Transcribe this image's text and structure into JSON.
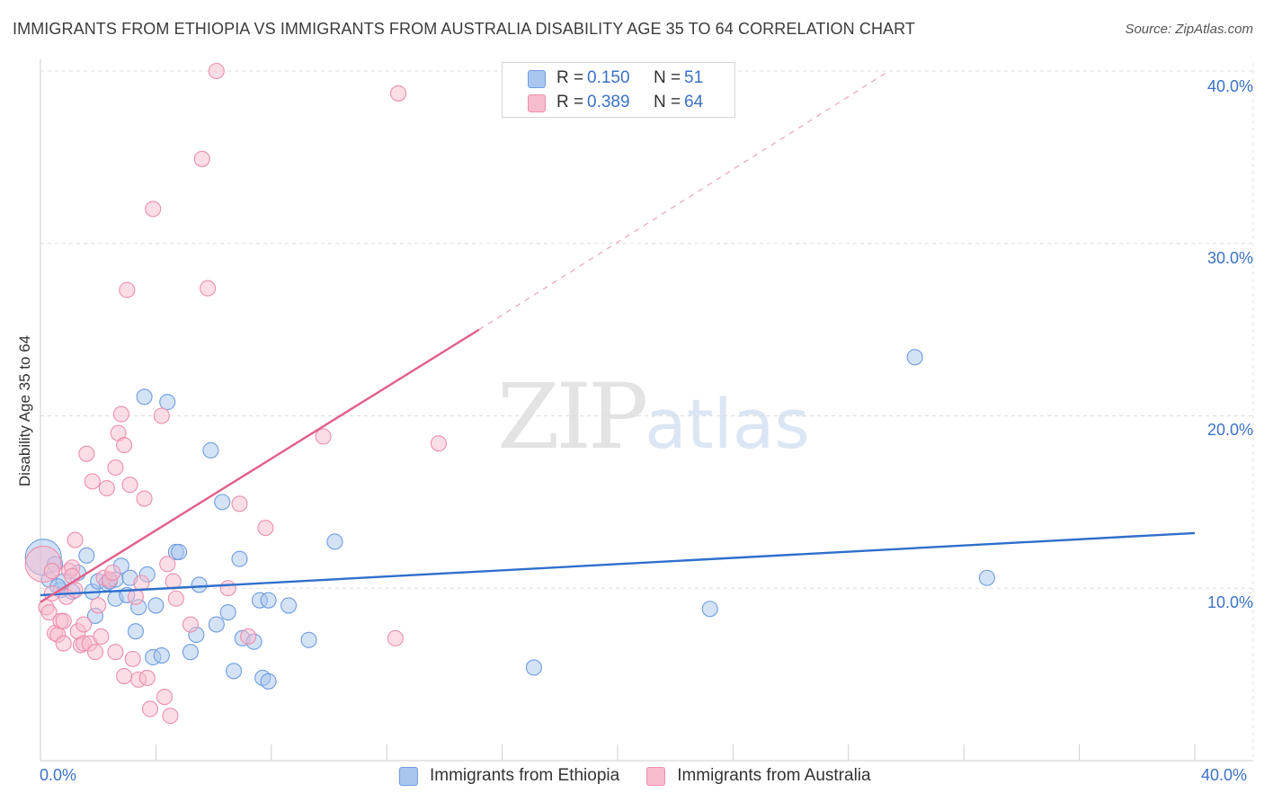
{
  "header": {
    "title": "IMMIGRANTS FROM ETHIOPIA VS IMMIGRANTS FROM AUSTRALIA DISABILITY AGE 35 TO 64 CORRELATION CHART",
    "source": "Source: ZipAtlas.com"
  },
  "watermark": {
    "zip": "ZIP",
    "atlas": "atlas"
  },
  "colors": {
    "blue_fill": "#a9c6ee",
    "blue_line": "#2f6fcc",
    "pink_fill": "#f7bccd",
    "pink_line": "#e0608a",
    "tick_text": "#3b72c4"
  },
  "legend": {
    "rows": [
      {
        "series": "ethiopia",
        "r_label": "R =",
        "r_value": "0.150",
        "n_label": "N =",
        "n_value": "51"
      },
      {
        "series": "australia",
        "r_label": "R =",
        "r_value": "0.389",
        "n_label": "N =",
        "n_value": "64"
      }
    ]
  },
  "chart_data": {
    "type": "scatter",
    "title": "IMMIGRANTS FROM ETHIOPIA VS IMMIGRANTS FROM AUSTRALIA DISABILITY AGE 35 TO 64 CORRELATION CHART",
    "xlabel": "",
    "ylabel": "Disability Age 35 to 64",
    "xlim": [
      0,
      40
    ],
    "ylim": [
      0,
      40
    ],
    "x_tick_labels": [
      "0.0%",
      "40.0%"
    ],
    "y_ticks": [
      10,
      20,
      30,
      40
    ],
    "y_tick_labels": [
      "10.0%",
      "20.0%",
      "30.0%",
      "40.0%"
    ],
    "grid": true,
    "series": [
      {
        "name": "Immigrants from Ethiopia",
        "trend": {
          "x": [
            0,
            40
          ],
          "y": [
            9.6,
            13.2
          ],
          "extrapolated_to": 40
        },
        "points": [
          {
            "x": 0.1,
            "y": 11.8,
            "big": true
          },
          {
            "x": 0.3,
            "y": 10.5
          },
          {
            "x": 0.5,
            "y": 11.4
          },
          {
            "x": 0.7,
            "y": 9.9
          },
          {
            "x": 0.8,
            "y": 10.4
          },
          {
            "x": 1.1,
            "y": 9.8
          },
          {
            "x": 1.3,
            "y": 10.9
          },
          {
            "x": 1.6,
            "y": 11.9
          },
          {
            "x": 1.8,
            "y": 9.8
          },
          {
            "x": 1.9,
            "y": 8.4
          },
          {
            "x": 2.0,
            "y": 10.4
          },
          {
            "x": 2.3,
            "y": 10.3
          },
          {
            "x": 2.4,
            "y": 10.4
          },
          {
            "x": 2.6,
            "y": 10.5
          },
          {
            "x": 2.6,
            "y": 9.4
          },
          {
            "x": 2.8,
            "y": 11.3
          },
          {
            "x": 3.0,
            "y": 9.6
          },
          {
            "x": 3.1,
            "y": 10.6
          },
          {
            "x": 3.3,
            "y": 7.5
          },
          {
            "x": 3.4,
            "y": 8.9
          },
          {
            "x": 3.6,
            "y": 21.1
          },
          {
            "x": 3.7,
            "y": 10.8
          },
          {
            "x": 3.9,
            "y": 6.0
          },
          {
            "x": 4.0,
            "y": 9.0
          },
          {
            "x": 4.2,
            "y": 6.1
          },
          {
            "x": 4.4,
            "y": 20.8
          },
          {
            "x": 4.7,
            "y": 12.1
          },
          {
            "x": 4.8,
            "y": 12.1
          },
          {
            "x": 5.2,
            "y": 6.3
          },
          {
            "x": 5.4,
            "y": 7.3
          },
          {
            "x": 5.5,
            "y": 10.2
          },
          {
            "x": 5.9,
            "y": 18.0
          },
          {
            "x": 6.1,
            "y": 7.9
          },
          {
            "x": 6.3,
            "y": 15.0
          },
          {
            "x": 6.5,
            "y": 8.6
          },
          {
            "x": 6.7,
            "y": 5.2
          },
          {
            "x": 6.9,
            "y": 11.7
          },
          {
            "x": 7.0,
            "y": 7.1
          },
          {
            "x": 7.4,
            "y": 6.9
          },
          {
            "x": 7.6,
            "y": 9.3
          },
          {
            "x": 7.7,
            "y": 4.8
          },
          {
            "x": 7.9,
            "y": 4.6
          },
          {
            "x": 7.9,
            "y": 9.3
          },
          {
            "x": 8.6,
            "y": 9.0
          },
          {
            "x": 9.3,
            "y": 7.0
          },
          {
            "x": 10.2,
            "y": 12.7
          },
          {
            "x": 17.1,
            "y": 5.4
          },
          {
            "x": 23.2,
            "y": 8.8
          },
          {
            "x": 30.3,
            "y": 23.4
          },
          {
            "x": 32.8,
            "y": 10.6
          },
          {
            "x": 0.6,
            "y": 10.1
          }
        ]
      },
      {
        "name": "Immigrants from Australia",
        "trend": {
          "x": [
            0,
            15.2
          ],
          "y": [
            9.2,
            25.0
          ],
          "dashed_extension": {
            "x": [
              15.2,
              29.4
            ],
            "y": [
              25.0,
              40.0
            ]
          }
        },
        "points": [
          {
            "x": 0.1,
            "y": 11.4,
            "big": true
          },
          {
            "x": 0.2,
            "y": 8.9
          },
          {
            "x": 0.3,
            "y": 8.6
          },
          {
            "x": 0.4,
            "y": 9.7
          },
          {
            "x": 0.5,
            "y": 7.4
          },
          {
            "x": 0.6,
            "y": 7.3
          },
          {
            "x": 0.7,
            "y": 8.1
          },
          {
            "x": 0.8,
            "y": 8.1
          },
          {
            "x": 0.9,
            "y": 9.5
          },
          {
            "x": 1.0,
            "y": 11.0
          },
          {
            "x": 1.1,
            "y": 11.2
          },
          {
            "x": 1.1,
            "y": 10.7
          },
          {
            "x": 1.2,
            "y": 12.8
          },
          {
            "x": 1.3,
            "y": 7.5
          },
          {
            "x": 1.4,
            "y": 6.7
          },
          {
            "x": 1.5,
            "y": 7.9
          },
          {
            "x": 1.5,
            "y": 6.8
          },
          {
            "x": 1.6,
            "y": 17.8
          },
          {
            "x": 1.7,
            "y": 6.8
          },
          {
            "x": 1.8,
            "y": 16.2
          },
          {
            "x": 1.9,
            "y": 6.3
          },
          {
            "x": 2.0,
            "y": 9.0
          },
          {
            "x": 2.1,
            "y": 7.2
          },
          {
            "x": 2.2,
            "y": 10.6
          },
          {
            "x": 2.3,
            "y": 15.8
          },
          {
            "x": 2.4,
            "y": 10.5
          },
          {
            "x": 2.6,
            "y": 6.3
          },
          {
            "x": 2.6,
            "y": 17.0
          },
          {
            "x": 2.7,
            "y": 19.0
          },
          {
            "x": 2.8,
            "y": 20.1
          },
          {
            "x": 2.9,
            "y": 4.9
          },
          {
            "x": 2.9,
            "y": 18.3
          },
          {
            "x": 3.0,
            "y": 27.3
          },
          {
            "x": 3.1,
            "y": 16.0
          },
          {
            "x": 3.2,
            "y": 5.9
          },
          {
            "x": 3.3,
            "y": 9.5
          },
          {
            "x": 3.4,
            "y": 4.7
          },
          {
            "x": 3.5,
            "y": 10.3
          },
          {
            "x": 3.6,
            "y": 15.2
          },
          {
            "x": 3.7,
            "y": 4.8
          },
          {
            "x": 3.8,
            "y": 3.0
          },
          {
            "x": 3.9,
            "y": 32.0
          },
          {
            "x": 4.2,
            "y": 20.0
          },
          {
            "x": 4.3,
            "y": 3.7
          },
          {
            "x": 4.4,
            "y": 11.4
          },
          {
            "x": 4.5,
            "y": 2.6
          },
          {
            "x": 4.6,
            "y": 10.4
          },
          {
            "x": 4.7,
            "y": 9.4
          },
          {
            "x": 5.2,
            "y": 7.9
          },
          {
            "x": 5.6,
            "y": 34.9
          },
          {
            "x": 5.8,
            "y": 27.4
          },
          {
            "x": 6.1,
            "y": 40.0
          },
          {
            "x": 6.5,
            "y": 10.0
          },
          {
            "x": 6.9,
            "y": 14.9
          },
          {
            "x": 7.2,
            "y": 7.2
          },
          {
            "x": 7.8,
            "y": 13.5
          },
          {
            "x": 9.8,
            "y": 18.8
          },
          {
            "x": 12.3,
            "y": 7.1
          },
          {
            "x": 12.4,
            "y": 38.7
          },
          {
            "x": 13.8,
            "y": 18.4
          },
          {
            "x": 0.8,
            "y": 6.8
          },
          {
            "x": 2.5,
            "y": 10.9
          },
          {
            "x": 1.2,
            "y": 9.9
          },
          {
            "x": 0.4,
            "y": 11.0
          }
        ]
      }
    ]
  },
  "bottom_legend": {
    "items": [
      {
        "series": "ethiopia",
        "label": "Immigrants from Ethiopia"
      },
      {
        "series": "australia",
        "label": "Immigrants from Australia"
      }
    ]
  }
}
